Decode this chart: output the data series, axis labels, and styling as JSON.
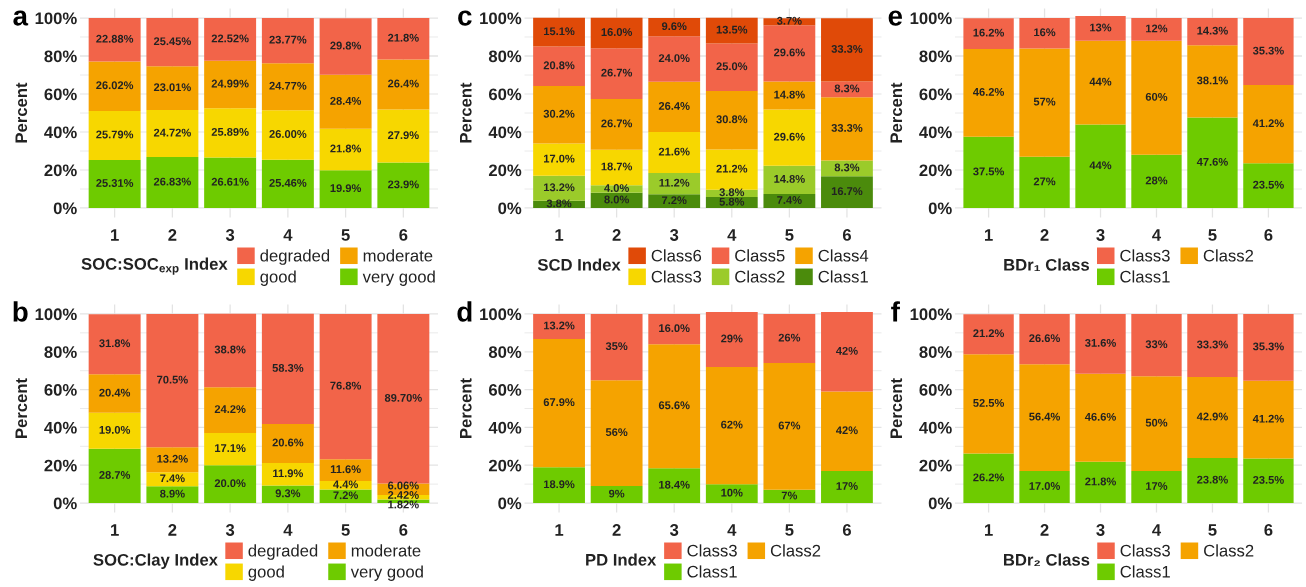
{
  "chart_data": [
    {
      "type": "bar",
      "stacked": true,
      "title": "a",
      "categories": [
        "1",
        "2",
        "3",
        "4",
        "5",
        "6"
      ],
      "ylabel": "Percent",
      "ylim": [
        -5,
        105
      ],
      "yticks": [
        {
          "value": 0,
          "label": "0%"
        },
        {
          "value": 10,
          "label": null
        },
        {
          "value": 20,
          "label": "20%"
        },
        {
          "value": 30,
          "label": null
        },
        {
          "value": 40,
          "label": "40%"
        },
        {
          "value": 50,
          "label": null
        },
        {
          "value": 60,
          "label": "60%"
        },
        {
          "value": 70,
          "label": null
        },
        {
          "value": 80,
          "label": "80%"
        },
        {
          "value": 90,
          "label": null
        },
        {
          "value": 100,
          "label": "100%"
        }
      ],
      "grid": true,
      "legend": "bottom",
      "legend_title": "SOC:SOC$_{exp}$ Index",
      "series": [
        {
          "name": "very good",
          "color": "#6ecb00",
          "values": [
            25.31,
            26.83,
            26.61,
            25.46,
            19.9,
            23.9
          ],
          "value_labels": [
            "25.31%",
            "26.83%",
            "26.61%",
            "25.46%",
            "19.9%",
            "23.9%"
          ]
        },
        {
          "name": "good",
          "color": "#f7d700",
          "values": [
            25.79,
            24.72,
            25.89,
            26.0,
            21.8,
            27.9
          ],
          "value_labels": [
            "25.79%",
            "24.72%",
            "25.89%",
            "26.00%",
            "21.8%",
            "27.9%"
          ]
        },
        {
          "name": "moderate",
          "color": "#f5a300",
          "values": [
            26.02,
            23.01,
            24.99,
            24.77,
            28.4,
            26.4
          ],
          "value_labels": [
            "26.02%",
            "23.01%",
            "24.99%",
            "24.77%",
            "28.4%",
            "26.4%"
          ]
        },
        {
          "name": "degraded",
          "color": "#f26449",
          "values": [
            22.88,
            25.45,
            22.52,
            23.77,
            29.8,
            21.8
          ],
          "value_labels": [
            "22.88%",
            "25.45%",
            "22.52%",
            "23.77%",
            "29.8%",
            "21.8%"
          ]
        }
      ]
    },
    {
      "type": "bar",
      "stacked": true,
      "title": "c",
      "categories": [
        "1",
        "2",
        "3",
        "4",
        "5",
        "6"
      ],
      "ylabel": "Percent",
      "ylim": [
        -5,
        105
      ],
      "yticks": [
        {
          "value": 0,
          "label": "0%"
        },
        {
          "value": 10,
          "label": null
        },
        {
          "value": 20,
          "label": "20%"
        },
        {
          "value": 30,
          "label": null
        },
        {
          "value": 40,
          "label": "40%"
        },
        {
          "value": 50,
          "label": null
        },
        {
          "value": 60,
          "label": "60%"
        },
        {
          "value": 70,
          "label": null
        },
        {
          "value": 80,
          "label": "80%"
        },
        {
          "value": 90,
          "label": null
        },
        {
          "value": 100,
          "label": "100%"
        }
      ],
      "grid": true,
      "legend": "bottom",
      "legend_title": "SCD Index",
      "series": [
        {
          "name": "Class1",
          "color": "#4b8b0c",
          "values": [
            3.8,
            8.0,
            7.2,
            5.8,
            7.4,
            16.7
          ],
          "value_labels": [
            "3.8%",
            "8.0%",
            "7.2%",
            "5.8%",
            "7.4%",
            "16.7%"
          ]
        },
        {
          "name": "Class2",
          "color": "#9bcb2a",
          "values": [
            13.2,
            4.0,
            11.2,
            3.8,
            14.8,
            8.3
          ],
          "value_labels": [
            "13.2%",
            "4.0%",
            "11.2%",
            "3.8%",
            "14.8%",
            "8.3%"
          ]
        },
        {
          "name": "Class3",
          "color": "#f7d700",
          "values": [
            17.0,
            18.7,
            21.6,
            21.2,
            29.6,
            null
          ],
          "value_labels": [
            "17.0%",
            "18.7%",
            "21.6%",
            "21.2%",
            "29.6%",
            null
          ]
        },
        {
          "name": "Class4",
          "color": "#f5a300",
          "values": [
            30.2,
            26.7,
            26.4,
            30.8,
            14.8,
            33.3
          ],
          "value_labels": [
            "30.2%",
            "26.7%",
            "26.4%",
            "30.8%",
            "14.8%",
            "33.3%"
          ]
        },
        {
          "name": "Class5",
          "color": "#f26449",
          "values": [
            20.8,
            26.7,
            24.0,
            25.0,
            29.6,
            8.3
          ],
          "value_labels": [
            "20.8%",
            "26.7%",
            "24.0%",
            "25.0%",
            "29.6%",
            "8.3%"
          ]
        },
        {
          "name": "Class6",
          "color": "#e04a08",
          "values": [
            15.1,
            16.0,
            9.6,
            13.5,
            3.7,
            33.3
          ],
          "value_labels": [
            "15.1%",
            "16.0%",
            "9.6%",
            "13.5%",
            "3.7%",
            "33.3%"
          ]
        }
      ]
    },
    {
      "type": "bar",
      "stacked": true,
      "title": "e",
      "categories": [
        "1",
        "2",
        "3",
        "4",
        "5",
        "6"
      ],
      "ylabel": "Percent",
      "ylim": [
        -5,
        105
      ],
      "yticks": [
        {
          "value": 0,
          "label": "0%"
        },
        {
          "value": 10,
          "label": null
        },
        {
          "value": 20,
          "label": "20%"
        },
        {
          "value": 30,
          "label": null
        },
        {
          "value": 40,
          "label": "40%"
        },
        {
          "value": 50,
          "label": null
        },
        {
          "value": 60,
          "label": "60%"
        },
        {
          "value": 70,
          "label": null
        },
        {
          "value": 80,
          "label": "80%"
        },
        {
          "value": 90,
          "label": null
        },
        {
          "value": 100,
          "label": "100%"
        }
      ],
      "grid": true,
      "legend": "bottom",
      "legend_title": "BDr₁ Class",
      "series": [
        {
          "name": "Class1",
          "color": "#6ecb00",
          "values": [
            37.5,
            27,
            44,
            28,
            47.6,
            23.5
          ],
          "value_labels": [
            "37.5%",
            "27%",
            "44%",
            "28%",
            "47.6%",
            "23.5%"
          ]
        },
        {
          "name": "Class2",
          "color": "#f5a300",
          "values": [
            46.2,
            57,
            44,
            60,
            38.1,
            41.2
          ],
          "value_labels": [
            "46.2%",
            "57%",
            "44%",
            "60%",
            "38.1%",
            "41.2%"
          ]
        },
        {
          "name": "Class3",
          "color": "#f26449",
          "values": [
            16.2,
            16,
            13,
            12,
            14.3,
            35.3
          ],
          "value_labels": [
            "16.2%",
            "16%",
            "13%",
            "12%",
            "14.3%",
            "35.3%"
          ]
        }
      ]
    },
    {
      "type": "bar",
      "stacked": true,
      "title": "b",
      "categories": [
        "1",
        "2",
        "3",
        "4",
        "5",
        "6"
      ],
      "ylabel": "Percent",
      "ylim": [
        -5,
        105
      ],
      "yticks": [
        {
          "value": 0,
          "label": "0%"
        },
        {
          "value": 10,
          "label": null
        },
        {
          "value": 20,
          "label": "20%"
        },
        {
          "value": 30,
          "label": null
        },
        {
          "value": 40,
          "label": "40%"
        },
        {
          "value": 50,
          "label": null
        },
        {
          "value": 60,
          "label": "60%"
        },
        {
          "value": 70,
          "label": null
        },
        {
          "value": 80,
          "label": "80%"
        },
        {
          "value": 90,
          "label": null
        },
        {
          "value": 100,
          "label": "100%"
        }
      ],
      "grid": true,
      "legend": "bottom",
      "legend_title": "SOC:Clay Index",
      "series": [
        {
          "name": "very good",
          "color": "#6ecb00",
          "values": [
            28.7,
            8.9,
            20.0,
            9.3,
            7.2,
            1.82
          ],
          "value_labels": [
            "28.7%",
            "8.9%",
            "20.0%",
            "9.3%",
            "7.2%",
            "1.82%"
          ]
        },
        {
          "name": "good",
          "color": "#f7d700",
          "values": [
            19.0,
            7.4,
            17.1,
            11.9,
            4.4,
            2.42
          ],
          "value_labels": [
            "19.0%",
            "7.4%",
            "17.1%",
            "11.9%",
            "4.4%",
            "2.42%"
          ]
        },
        {
          "name": "moderate",
          "color": "#f5a300",
          "values": [
            20.4,
            13.2,
            24.2,
            20.6,
            11.6,
            6.06
          ],
          "value_labels": [
            "20.4%",
            "13.2%",
            "24.2%",
            "20.6%",
            "11.6%",
            "6.06%"
          ]
        },
        {
          "name": "degraded",
          "color": "#f26449",
          "values": [
            31.8,
            70.5,
            38.8,
            58.3,
            76.8,
            89.7
          ],
          "value_labels": [
            "31.8%",
            "70.5%",
            "38.8%",
            "58.3%",
            "76.8%",
            "89.70%"
          ]
        }
      ]
    },
    {
      "type": "bar",
      "stacked": true,
      "title": "d",
      "categories": [
        "1",
        "2",
        "3",
        "4",
        "5",
        "6"
      ],
      "ylabel": "Percent",
      "ylim": [
        -5,
        105
      ],
      "yticks": [
        {
          "value": 0,
          "label": "0%"
        },
        {
          "value": 10,
          "label": null
        },
        {
          "value": 20,
          "label": "20%"
        },
        {
          "value": 30,
          "label": null
        },
        {
          "value": 40,
          "label": "40%"
        },
        {
          "value": 50,
          "label": null
        },
        {
          "value": 60,
          "label": "60%"
        },
        {
          "value": 70,
          "label": null
        },
        {
          "value": 80,
          "label": "80%"
        },
        {
          "value": 90,
          "label": null
        },
        {
          "value": 100,
          "label": "100%"
        }
      ],
      "grid": true,
      "legend": "bottom",
      "legend_title": "PD Index",
      "series": [
        {
          "name": "Class1",
          "color": "#6ecb00",
          "values": [
            18.9,
            9,
            18.4,
            10,
            7,
            17
          ],
          "value_labels": [
            "18.9%",
            "9%",
            "18.4%",
            "10%",
            "7%",
            "17%"
          ]
        },
        {
          "name": "Class2",
          "color": "#f5a300",
          "values": [
            67.9,
            56,
            65.6,
            62,
            67,
            42
          ],
          "value_labels": [
            "67.9%",
            "56%",
            "65.6%",
            "62%",
            "67%",
            "42%"
          ]
        },
        {
          "name": "Class3",
          "color": "#f26449",
          "values": [
            13.2,
            35,
            16.0,
            29,
            26,
            42
          ],
          "value_labels": [
            "13.2%",
            "35%",
            "16.0%",
            "29%",
            "26%",
            "42%"
          ]
        }
      ]
    },
    {
      "type": "bar",
      "stacked": true,
      "title": "f",
      "categories": [
        "1",
        "2",
        "3",
        "4",
        "5",
        "6"
      ],
      "ylabel": "Percent",
      "ylim": [
        -5,
        105
      ],
      "yticks": [
        {
          "value": 0,
          "label": "0%"
        },
        {
          "value": 10,
          "label": null
        },
        {
          "value": 20,
          "label": "20%"
        },
        {
          "value": 30,
          "label": null
        },
        {
          "value": 40,
          "label": "40%"
        },
        {
          "value": 50,
          "label": null
        },
        {
          "value": 60,
          "label": "60%"
        },
        {
          "value": 70,
          "label": null
        },
        {
          "value": 80,
          "label": "80%"
        },
        {
          "value": 90,
          "label": null
        },
        {
          "value": 100,
          "label": "100%"
        }
      ],
      "grid": true,
      "legend": "bottom",
      "legend_title": "BDr₂ Class",
      "series": [
        {
          "name": "Class1",
          "color": "#6ecb00",
          "values": [
            26.2,
            17.0,
            21.8,
            17,
            23.8,
            23.5
          ],
          "value_labels": [
            "26.2%",
            "17.0%",
            "21.8%",
            "17%",
            "23.8%",
            "23.5%"
          ]
        },
        {
          "name": "Class2",
          "color": "#f5a300",
          "values": [
            52.5,
            56.4,
            46.6,
            50,
            42.9,
            41.2
          ],
          "value_labels": [
            "52.5%",
            "56.4%",
            "46.6%",
            "50%",
            "42.9%",
            "41.2%"
          ]
        },
        {
          "name": "Class3",
          "color": "#f26449",
          "values": [
            21.2,
            26.6,
            31.6,
            33,
            33.3,
            35.3
          ],
          "value_labels": [
            "21.2%",
            "26.6%",
            "31.6%",
            "33%",
            "33.3%",
            "35.3%"
          ]
        }
      ]
    }
  ]
}
